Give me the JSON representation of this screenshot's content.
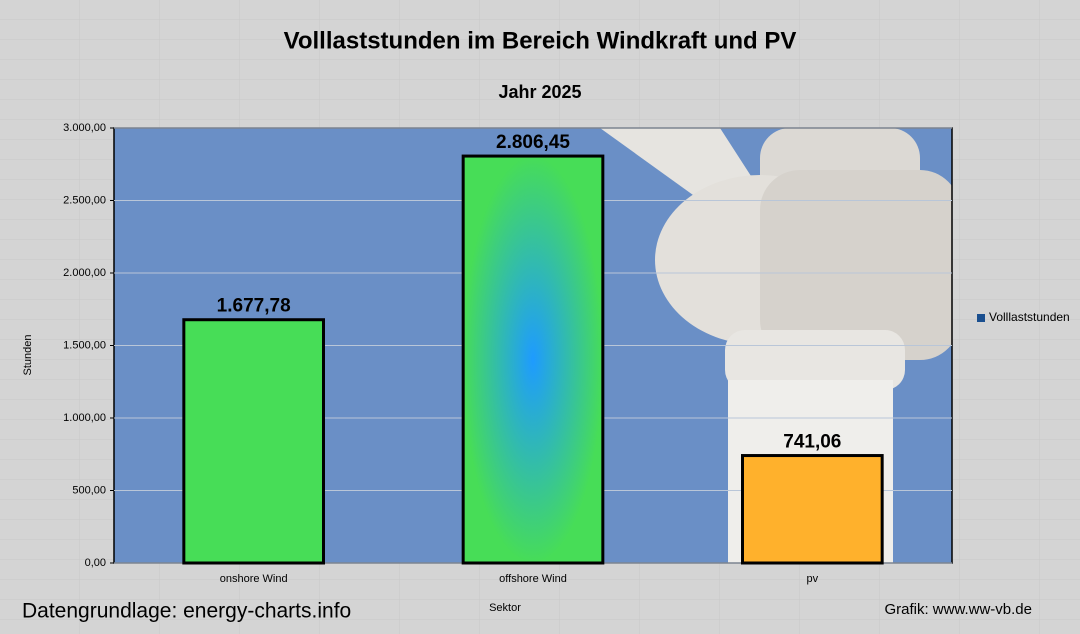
{
  "chart_data": {
    "type": "bar",
    "title": "Volllaststunden im Bereich Windkraft und PV",
    "subtitle": "Jahr 2025",
    "y_label": "Stunden",
    "x_label": "Sektor",
    "categories": [
      "onshore Wind",
      "offshore Wind",
      "pv"
    ],
    "series": [
      {
        "name": "Volllaststunden",
        "color": "#1a4f8f",
        "values": [
          1677.78,
          2806.45,
          741.06
        ],
        "value_labels": [
          "1.677,78",
          "2.806,45",
          "741,06"
        ],
        "bar_colors": [
          "#47dd57",
          "#1e9bff",
          "#ffb12c"
        ]
      }
    ],
    "ylim": [
      0,
      3000
    ],
    "yticks": [
      {
        "value": 0,
        "label": "0,00"
      },
      {
        "value": 500,
        "label": "500,00"
      },
      {
        "value": 1000,
        "label": "1.000,00"
      },
      {
        "value": 1500,
        "label": "1.500,00"
      },
      {
        "value": 2000,
        "label": "2.000,00"
      },
      {
        "value": 2500,
        "label": "2.500,00"
      },
      {
        "value": 3000,
        "label": "3.000,00"
      }
    ],
    "grid": true,
    "legend": "right",
    "source": "Datengrundlage: energy-charts.info",
    "credit": "Grafik: www.ww-vb.de"
  }
}
